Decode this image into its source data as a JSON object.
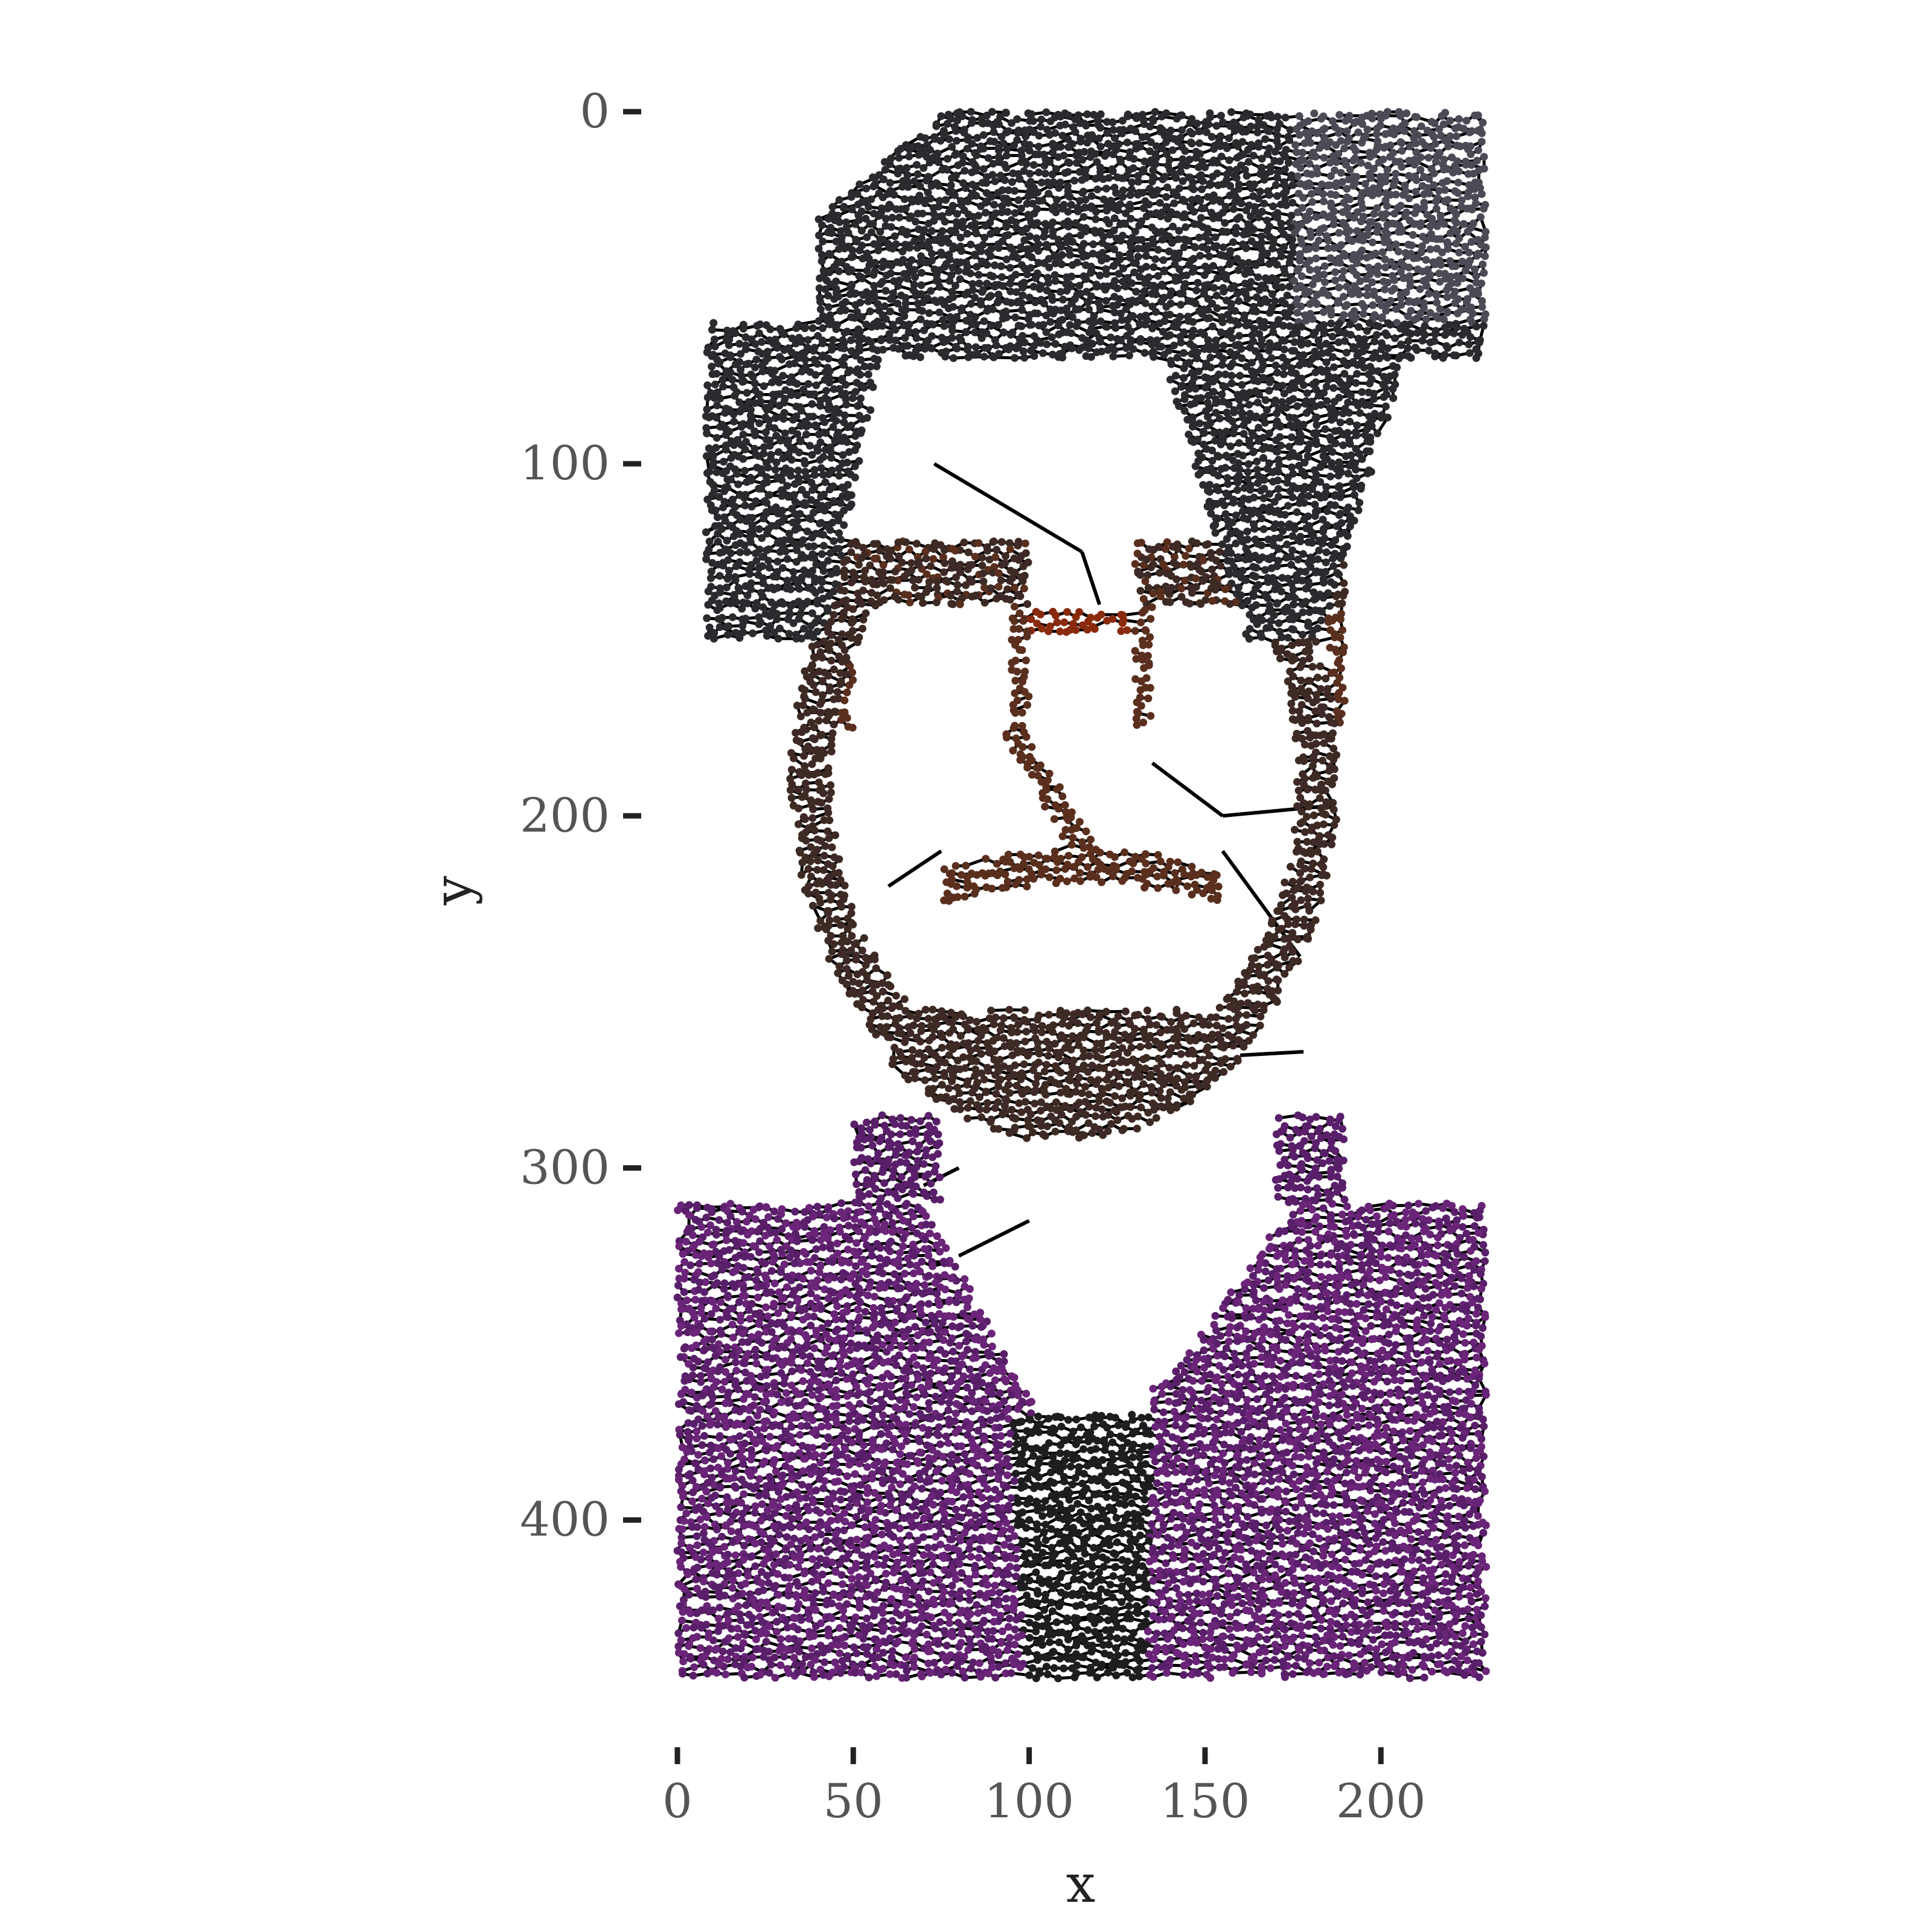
{
  "chart_data": {
    "type": "scatter",
    "description_of_marks": "continuous path (TSP-style line art) with colored points",
    "xlabel": "x",
    "ylabel": "y",
    "xlim": [
      0,
      230
    ],
    "ylim": [
      0,
      445
    ],
    "y_reversed": true,
    "x_ticks": [
      0,
      50,
      100,
      150,
      200
    ],
    "y_ticks": [
      0,
      100,
      200,
      300,
      400
    ],
    "grid": false,
    "legend": "none",
    "colors": {
      "hair": "#2b2a2e",
      "hair_light": "#4a4b55",
      "skin_shadow": "#3e2a24",
      "skin_warm": "#5a2f1e",
      "glasses_accent": "#8a2a0c",
      "shirt": "#5a1f6a",
      "shirt_light": "#6a2478",
      "tie": "#1e1e20",
      "line": "#000000"
    },
    "regions": [
      {
        "name": "hair",
        "x": [
          6,
          230
        ],
        "y": [
          0,
          145
        ],
        "color_key": "hair"
      },
      {
        "name": "face-outline",
        "x": [
          40,
          200
        ],
        "y": [
          100,
          300
        ],
        "color_key": "skin_shadow"
      },
      {
        "name": "shirt-left",
        "x": [
          0,
          105
        ],
        "y": [
          300,
          445
        ],
        "color_key": "shirt"
      },
      {
        "name": "shirt-right",
        "x": [
          130,
          230
        ],
        "y": [
          300,
          445
        ],
        "color_key": "shirt"
      },
      {
        "name": "tie",
        "x": [
          95,
          140
        ],
        "y": [
          370,
          445
        ],
        "color_key": "tie"
      }
    ]
  }
}
